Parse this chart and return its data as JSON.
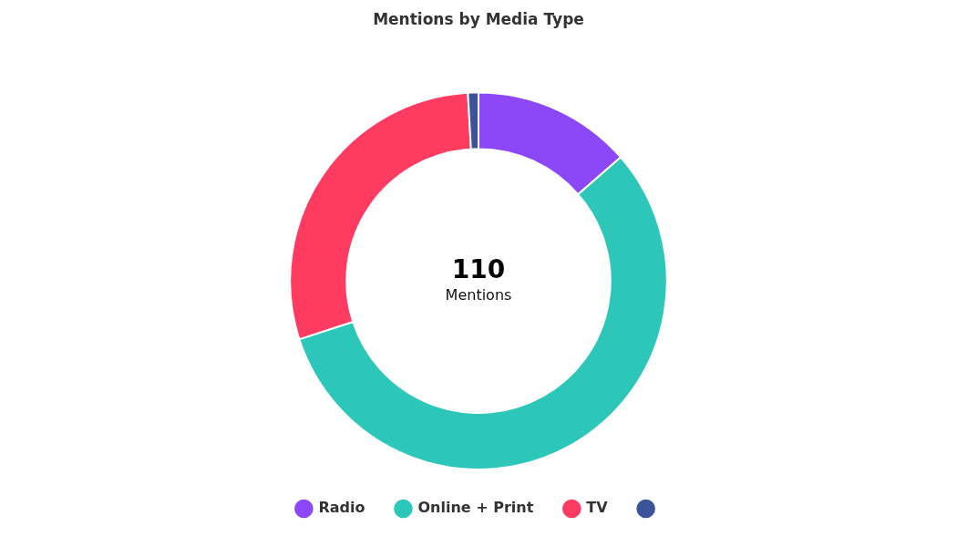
{
  "chart_data": {
    "type": "donut",
    "title": "Mentions by Media Type",
    "categories": [
      "Radio",
      "Online + Print",
      "TV",
      null
    ],
    "values": [
      13.6,
      56.4,
      29.1,
      0.9
    ],
    "colors": [
      "#8c47f8",
      "#2dc7ba",
      "#ff3b62",
      "#3b5499"
    ],
    "annotations": [
      "110",
      "Mentions"
    ],
    "legend": "bottom"
  }
}
